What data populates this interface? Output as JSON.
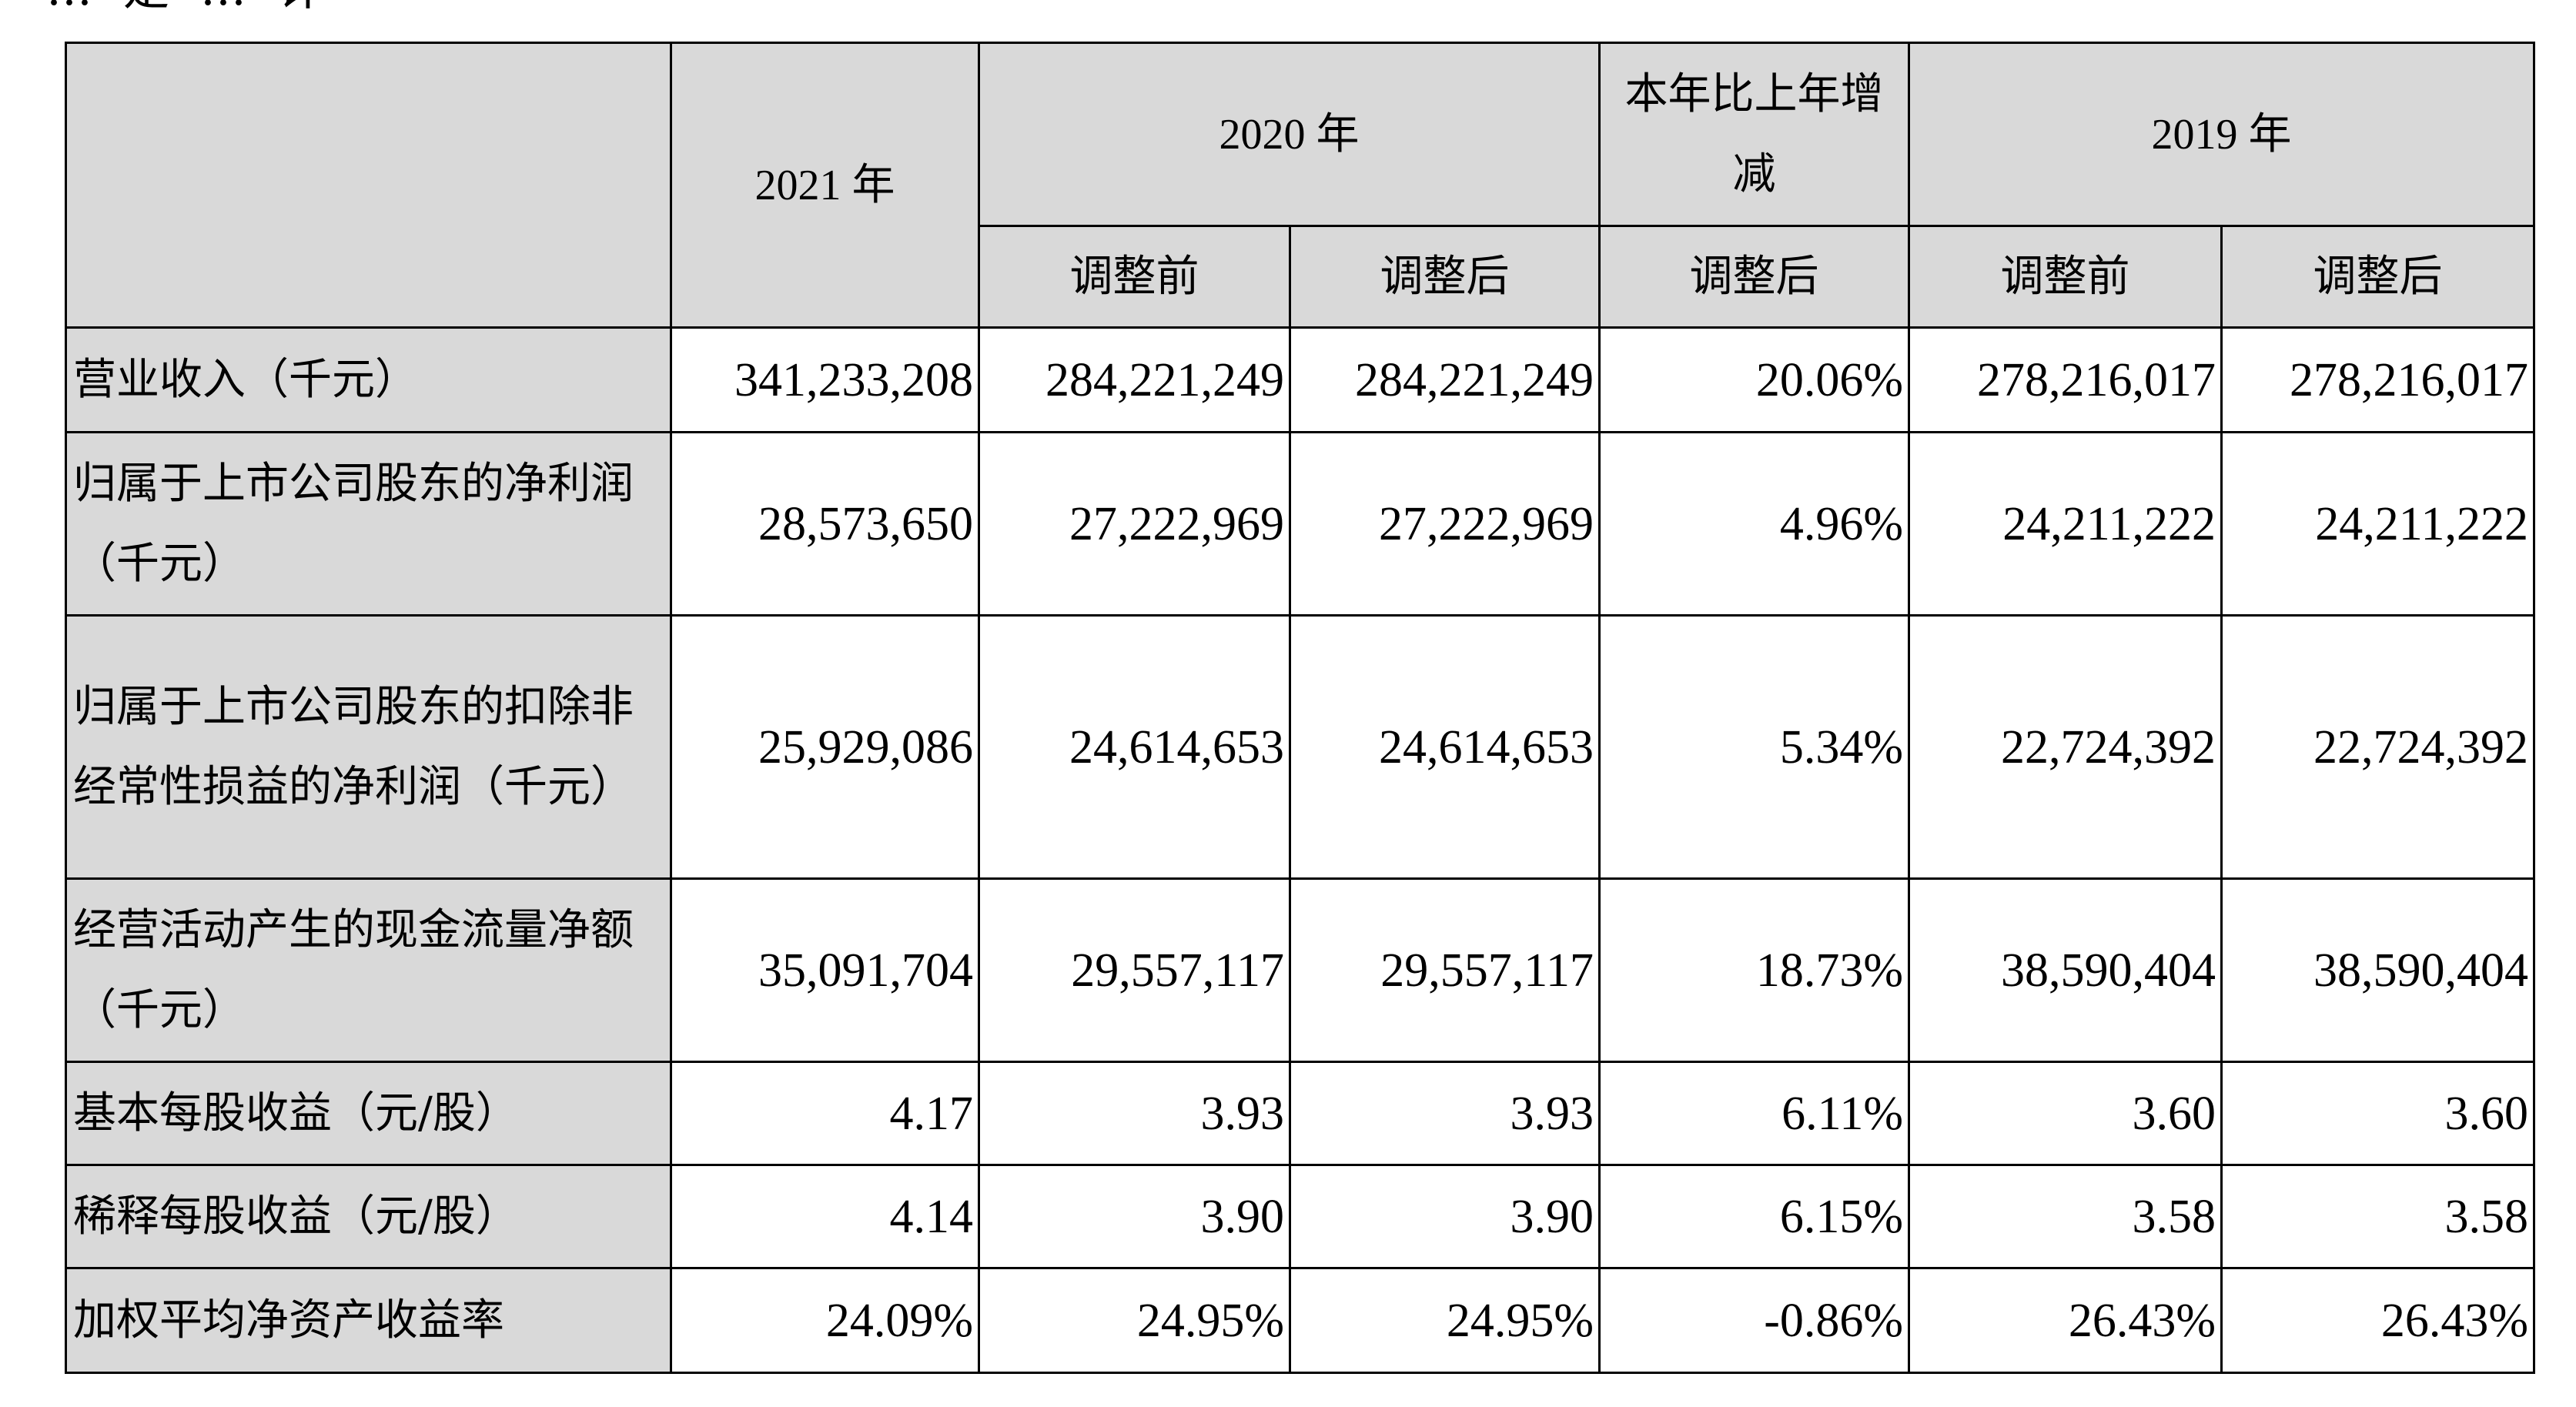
{
  "header_fragment": "…是…计",
  "table": {
    "headers": {
      "row_label_header": "",
      "y2021": "2021 年",
      "y2020": "2020 年",
      "change": "本年比上年增减",
      "y2019": "2019 年",
      "before_adjust_2020": "调整前",
      "after_adjust_2020": "调整后",
      "after_adjust_change": "调整后",
      "before_adjust_2019": "调整前",
      "after_adjust_2019": "调整后"
    },
    "rows": [
      {
        "label": "营业收入（千元）",
        "v2021": "341,233,208",
        "v2020_before": "284,221,249",
        "v2020_after": "284,221,249",
        "change": "20.06%",
        "v2019_before": "278,216,017",
        "v2019_after": "278,216,017"
      },
      {
        "label": "归属于上市公司股东的净利润（千元）",
        "v2021": "28,573,650",
        "v2020_before": "27,222,969",
        "v2020_after": "27,222,969",
        "change": "4.96%",
        "v2019_before": "24,211,222",
        "v2019_after": "24,211,222"
      },
      {
        "label": "归属于上市公司股东的扣除非经常性损益的净利润（千元）",
        "v2021": "25,929,086",
        "v2020_before": "24,614,653",
        "v2020_after": "24,614,653",
        "change": "5.34%",
        "v2019_before": "22,724,392",
        "v2019_after": "22,724,392"
      },
      {
        "label": "经营活动产生的现金流量净额（千元）",
        "v2021": "35,091,704",
        "v2020_before": "29,557,117",
        "v2020_after": "29,557,117",
        "change": "18.73%",
        "v2019_before": "38,590,404",
        "v2019_after": "38,590,404"
      },
      {
        "label": "基本每股收益（元/股）",
        "v2021": "4.17",
        "v2020_before": "3.93",
        "v2020_after": "3.93",
        "change": "6.11%",
        "v2019_before": "3.60",
        "v2019_after": "3.60"
      },
      {
        "label": "稀释每股收益（元/股）",
        "v2021": "4.14",
        "v2020_before": "3.90",
        "v2020_after": "3.90",
        "change": "6.15%",
        "v2019_before": "3.58",
        "v2019_after": "3.58"
      },
      {
        "label": "加权平均净资产收益率",
        "v2021": "24.09%",
        "v2020_before": "24.95%",
        "v2020_after": "24.95%",
        "change": "-0.86%",
        "v2019_before": "26.43%",
        "v2019_after": "26.43%"
      }
    ]
  }
}
